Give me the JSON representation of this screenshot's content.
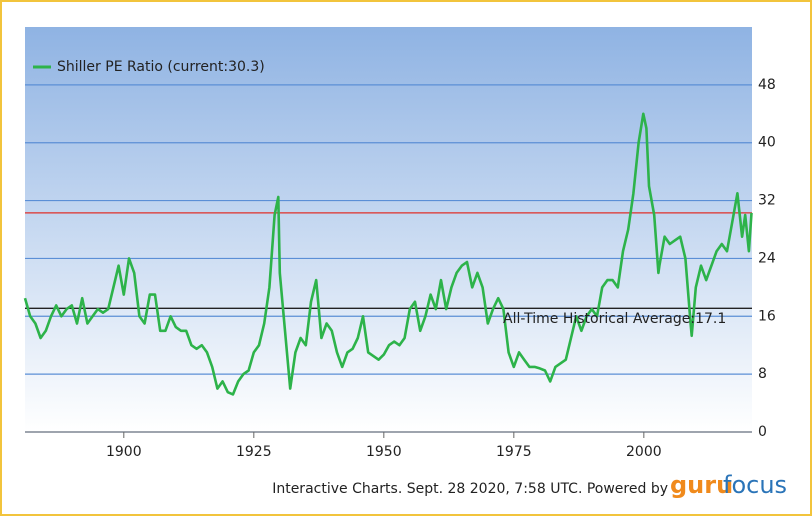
{
  "chart_data": {
    "type": "line",
    "legend_label": "Shiller PE Ratio (current:30.3)",
    "annotation": "All-Time Historical Average:17.1",
    "footer": "Interactive Charts. Sept. 28 2020, 7:58 UTC. Powered by",
    "brand": [
      "guru",
      "focus"
    ],
    "series": [
      {
        "name": "Shiller PE Ratio",
        "color": "#2db34a",
        "x": [
          1881,
          1882,
          1883,
          1884,
          1885,
          1886,
          1887,
          1888,
          1889,
          1890,
          1891,
          1892,
          1893,
          1894,
          1895,
          1896,
          1897,
          1898,
          1899,
          1900,
          1901,
          1902,
          1903,
          1904,
          1905,
          1906,
          1907,
          1908,
          1909,
          1910,
          1911,
          1912,
          1913,
          1914,
          1915,
          1916,
          1917,
          1918,
          1919,
          1920,
          1921,
          1922,
          1923,
          1924,
          1925,
          1926,
          1927,
          1928,
          1929,
          1929.7,
          1930,
          1931,
          1932,
          1933,
          1934,
          1935,
          1936,
          1937,
          1938,
          1939,
          1940,
          1941,
          1942,
          1943,
          1944,
          1945,
          1946,
          1947,
          1948,
          1949,
          1950,
          1951,
          1952,
          1953,
          1954,
          1955,
          1956,
          1957,
          1958,
          1959,
          1960,
          1961,
          1962,
          1963,
          1964,
          1965,
          1966,
          1967,
          1968,
          1969,
          1970,
          1971,
          1972,
          1973,
          1974,
          1975,
          1976,
          1977,
          1978,
          1979,
          1980,
          1981,
          1982,
          1983,
          1984,
          1985,
          1986,
          1987,
          1988,
          1989,
          1990,
          1991,
          1992,
          1993,
          1994,
          1995,
          1996,
          1997,
          1998,
          1999,
          1999.9,
          2000.5,
          2001,
          2002,
          2002.8,
          2003,
          2004,
          2005,
          2006,
          2007,
          2008,
          2009,
          2009.2,
          2010,
          2011,
          2012,
          2013,
          2014,
          2015,
          2016,
          2017,
          2018,
          2018.9,
          2019.5,
          2020.2,
          2020.7
        ],
        "values": [
          18.5,
          16,
          15,
          13,
          14,
          16,
          17.5,
          16,
          17,
          17.5,
          15,
          18.5,
          15,
          16,
          17,
          16.5,
          17,
          20,
          23,
          19,
          24,
          22,
          16,
          15,
          19,
          19,
          14,
          14,
          16,
          14.5,
          14,
          14,
          12,
          11.5,
          12,
          11,
          9,
          6,
          7,
          5.5,
          5.2,
          7,
          8,
          8.5,
          11,
          12,
          15,
          20,
          30,
          32.5,
          22,
          14,
          6,
          11,
          13,
          12,
          18,
          21,
          13,
          15,
          14,
          11,
          9,
          11,
          11.5,
          13,
          16,
          11,
          10.5,
          10,
          10.7,
          12,
          12.5,
          12,
          13,
          17,
          18,
          14,
          16,
          19,
          17,
          21,
          17,
          20,
          22,
          23,
          23.5,
          20,
          22,
          20,
          15,
          17,
          18.5,
          17,
          11,
          9,
          11,
          10,
          9,
          9,
          8.8,
          8.5,
          7,
          9,
          9.5,
          10,
          13,
          16,
          14,
          16,
          17,
          16,
          20,
          21,
          21,
          20,
          25,
          28,
          33,
          40,
          44,
          42,
          34,
          30,
          22,
          23,
          27,
          26,
          26.5,
          27,
          24,
          15,
          13.3,
          20,
          23,
          21,
          23,
          25,
          26,
          25,
          29,
          33,
          27,
          30,
          25,
          30.3
        ]
      }
    ],
    "reference_lines": [
      {
        "value": 30.3,
        "color": "#e0302a"
      },
      {
        "value": 17.1,
        "color": "#222222"
      }
    ],
    "xlim": [
      1881,
      2020.8
    ],
    "xticks": [
      1900,
      1925,
      1950,
      1975,
      2000
    ],
    "ylim": [
      0,
      56
    ],
    "yticks": [
      0,
      8,
      16,
      24,
      32,
      40,
      48
    ],
    "grid": true
  }
}
